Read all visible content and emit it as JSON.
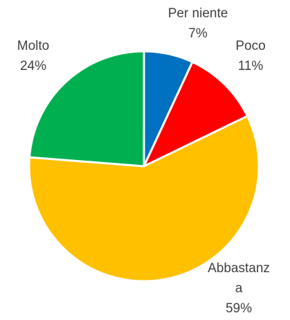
{
  "chart_data": {
    "type": "pie",
    "categories": [
      "Per niente",
      "Poco",
      "Abbastanza",
      "Molto"
    ],
    "values": [
      7,
      11,
      59,
      24
    ],
    "value_labels": [
      "7%",
      "11%",
      "59%",
      "24%"
    ],
    "colors": [
      "#0070c0",
      "#ff0000",
      "#ffc000",
      "#00b050"
    ]
  }
}
